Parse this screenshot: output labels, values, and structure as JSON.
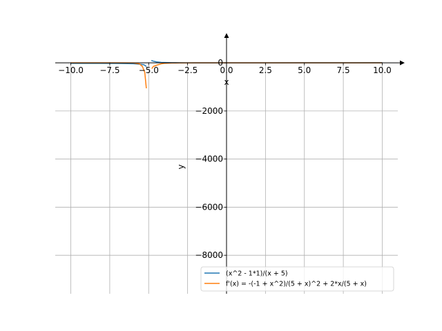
{
  "chart_data": {
    "type": "line",
    "title": "",
    "xlabel": "x",
    "ylabel": "y",
    "xlim": [
      -11,
      11
    ],
    "ylim": [
      -9600,
      950
    ],
    "grid": true,
    "legend_position": "bottom-right",
    "x_ticks": [
      {
        "value": -10,
        "label": "−10.0"
      },
      {
        "value": -7.5,
        "label": "−7.5"
      },
      {
        "value": -5,
        "label": "−5.0"
      },
      {
        "value": -2.5,
        "label": "−2.5"
      },
      {
        "value": 0,
        "label": "0.0"
      },
      {
        "value": 2.5,
        "label": "2.5"
      },
      {
        "value": 5,
        "label": "5.0"
      },
      {
        "value": 7.5,
        "label": "7.5"
      },
      {
        "value": 10,
        "label": "10.0"
      }
    ],
    "y_ticks": [
      {
        "value": 0,
        "label": "0"
      },
      {
        "value": -2000,
        "label": "−2000"
      },
      {
        "value": -4000,
        "label": "−4000"
      },
      {
        "value": -6000,
        "label": "−6000"
      },
      {
        "value": -8000,
        "label": "−8000"
      }
    ],
    "series": [
      {
        "name": "(x^2 - 1*1)/(x + 5)",
        "color": "#1f77b4",
        "segments": [
          {
            "x": [
              -10,
              -9,
              -8,
              -7,
              -6,
              -5.6,
              -5.3,
              -5.15
            ],
            "y": [
              -19.8,
              -20,
              -21,
              -24,
              -35,
              -58,
              -80,
              -150
            ]
          },
          {
            "x": [
              -4.83,
              -4.7,
              -4.5,
              -4.2,
              -4,
              -3.5,
              -3,
              -2.5,
              -2,
              -1,
              0,
              2.5,
              5,
              7.5,
              10
            ],
            "y": [
              100,
              70,
              40,
              20,
              15,
              8,
              4,
              2,
              1,
              0,
              -0.2,
              0.7,
              2.4,
              4.4,
              6.6
            ]
          }
        ]
      },
      {
        "name": "f'(x) = -(-1 + x^2)/(5 + x)^2 + 2*x/(5 + x)",
        "color": "#ff7f0e",
        "segments": [
          {
            "x": [
              -10,
              -8,
              -7,
              -6,
              -5.6,
              -5.4,
              -5.25,
              -5.15
            ],
            "y": [
              0,
              0,
              -1,
              -3,
              -40,
              -150,
              -400,
              -1060
            ]
          },
          {
            "x": [
              -4.8,
              -4.7,
              -4.5,
              -4.2,
              -4,
              -3.5,
              -3,
              -2.5,
              -2,
              0,
              2.5,
              5,
              10
            ],
            "y": [
              -240,
              -150,
              -100,
              -40,
              -20,
              -8,
              -4,
              -2,
              -1,
              0,
              0.5,
              0.8,
              0.9
            ]
          }
        ]
      }
    ]
  }
}
